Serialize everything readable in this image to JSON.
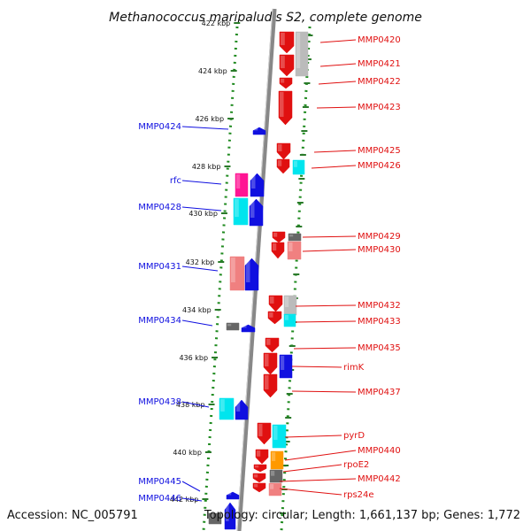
{
  "title": "Methanococcus maripaludis S2, complete genome",
  "footer": {
    "accession": "Accession: NC_005791",
    "summary": "Topology: circular; Length: 1,661,137 bp; Genes: 1,772"
  },
  "colors": {
    "backbone": "#888888",
    "forward_gene": "#e01010",
    "reverse_gene": "#1010e0",
    "tick": "#2a7a2a",
    "dots": "#1f8a1f",
    "cyan": "#00e5ee",
    "grey": "#bbbbbb",
    "pink": "#f08080",
    "magenta": "#ff1493",
    "orange": "#ff9900",
    "darkgrey": "#666666"
  },
  "kbp_ticks": [
    "422 kbp",
    "424 kbp",
    "426 kbp",
    "428 kbp",
    "430 kbp",
    "432 kbp",
    "434 kbp",
    "436 kbp",
    "438 kbp",
    "440 kbp",
    "442 kbp"
  ],
  "right_genes": [
    "MMP0420",
    "MMP0421",
    "MMP0422",
    "MMP0423",
    "MMP0425",
    "MMP0426",
    "MMP0429",
    "MMP0430",
    "MMP0432",
    "MMP0433",
    "MMP0435",
    "rimK",
    "MMP0437",
    "pyrD",
    "MMP0440",
    "rpoE2",
    "MMP0442",
    "rps24e"
  ],
  "left_genes": [
    "MMP0424",
    "rfc",
    "MMP0428",
    "MMP0431",
    "MMP0434",
    "MMP0438",
    "MMP0445",
    "MMP0446"
  ]
}
